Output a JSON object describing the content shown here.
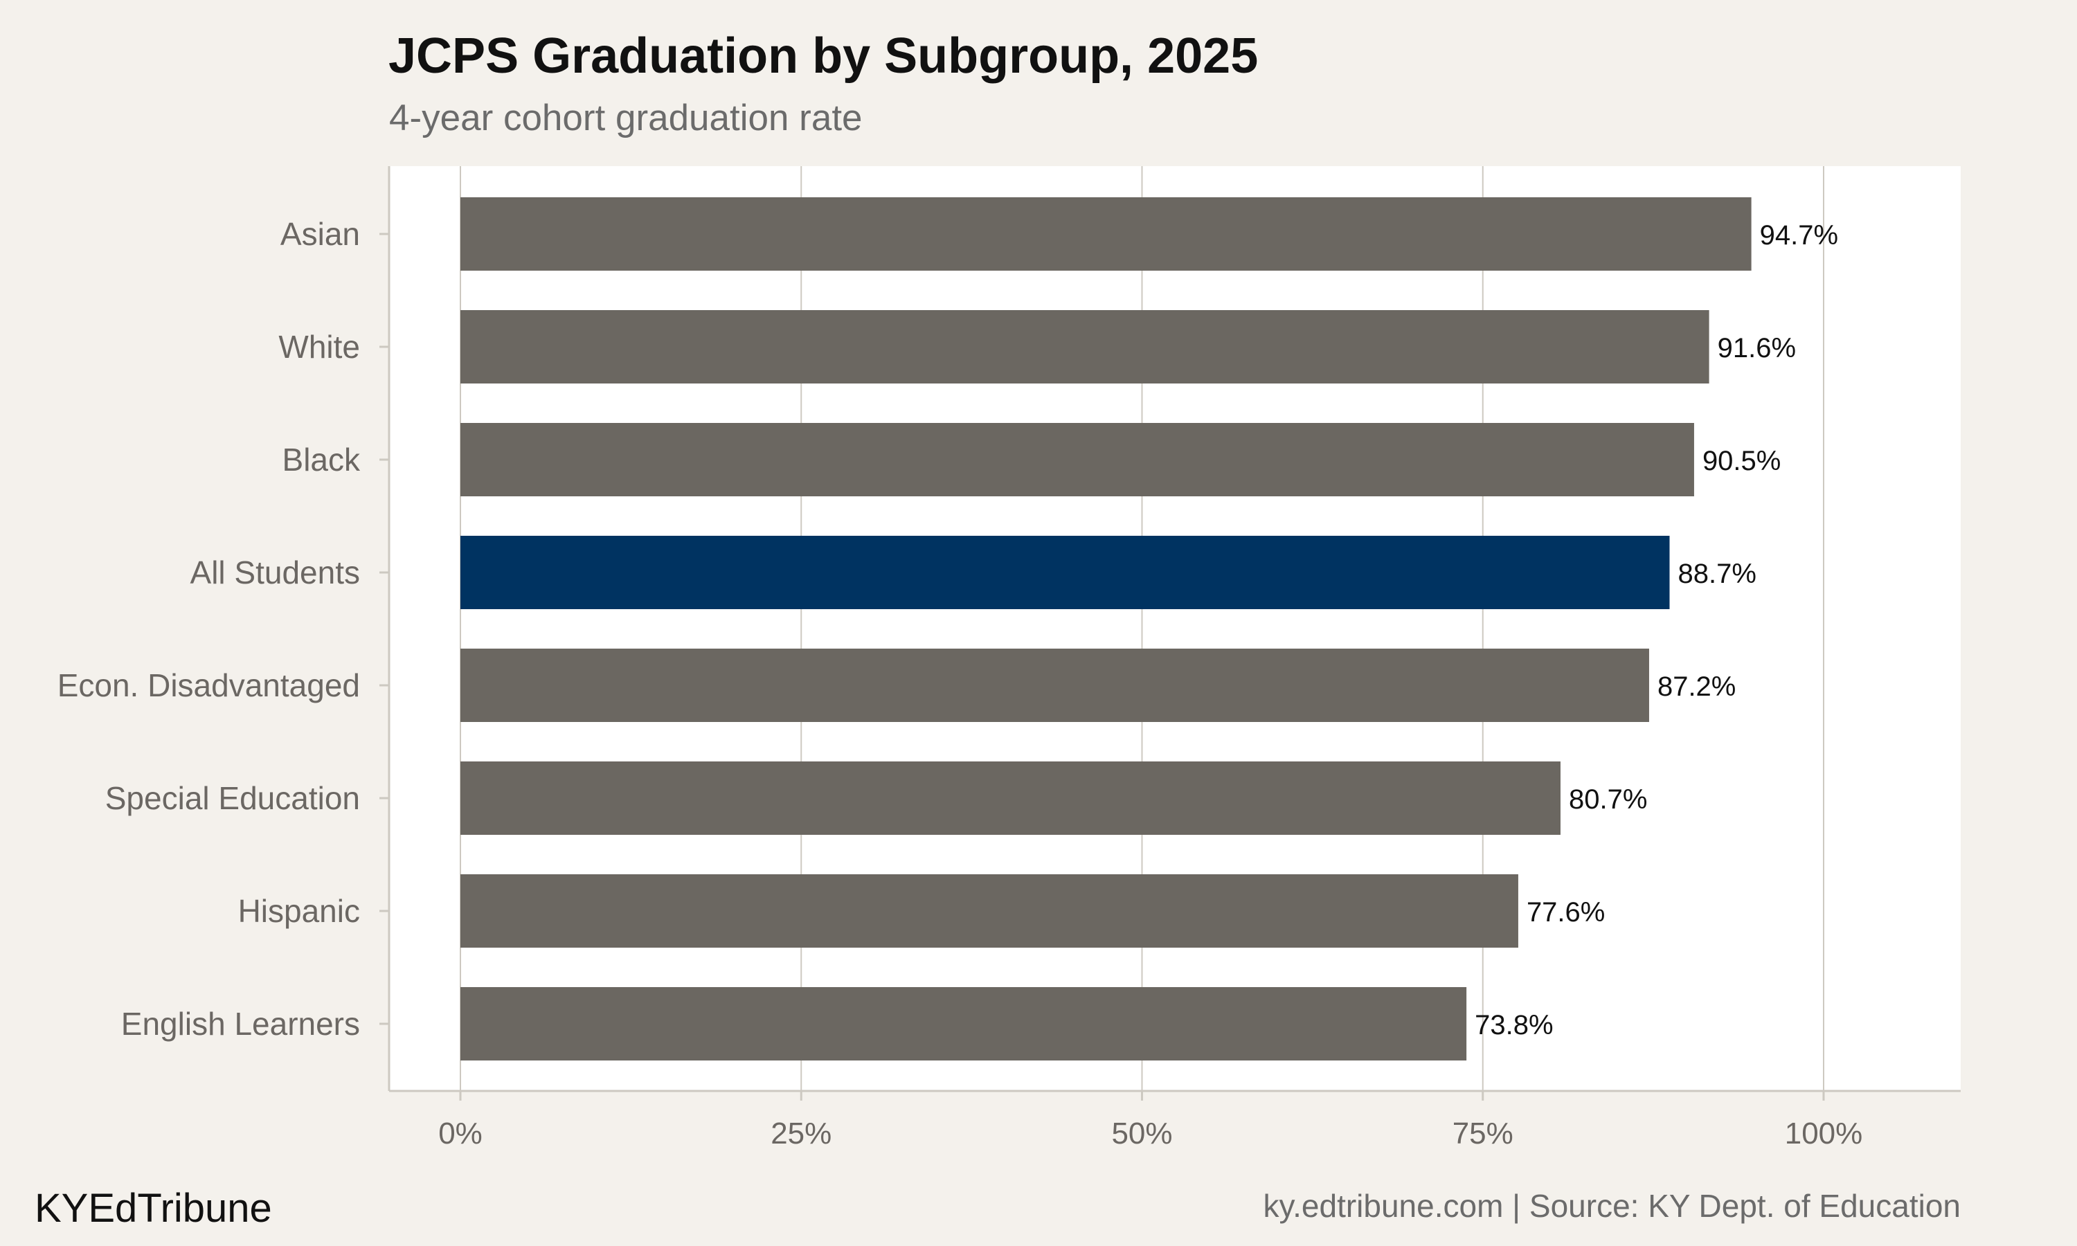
{
  "chart_data": {
    "type": "bar",
    "orientation": "horizontal",
    "title": "JCPS Graduation by Subgroup, 2025",
    "subtitle": "4-year cohort graduation rate",
    "categories": [
      "Asian",
      "White",
      "Black",
      "All Students",
      "Econ. Disadvantaged",
      "Special Education",
      "Hispanic",
      "English Learners"
    ],
    "values": [
      94.7,
      91.6,
      90.5,
      88.7,
      87.2,
      80.7,
      77.6,
      73.8
    ],
    "value_labels": [
      "94.7%",
      "91.6%",
      "90.5%",
      "88.7%",
      "87.2%",
      "80.7%",
      "77.6%",
      "73.8%"
    ],
    "highlight_category": "All Students",
    "xlim": [
      0,
      100
    ],
    "x_ticks": [
      0,
      25,
      50,
      75,
      100
    ],
    "x_tick_labels": [
      "0%",
      "25%",
      "50%",
      "75%",
      "100%"
    ],
    "xlabel": "",
    "ylabel": "",
    "grid": "vertical",
    "legend": "none",
    "colors": {
      "bar": "#6b6761",
      "highlight": "#003361",
      "panel": "#ffffff",
      "background": "#f4f1ec",
      "gridline": "#cdc9c1"
    }
  },
  "footer": {
    "brand": "KYEdTribune",
    "source": "ky.edtribune.com | Source: KY Dept. of Education"
  }
}
